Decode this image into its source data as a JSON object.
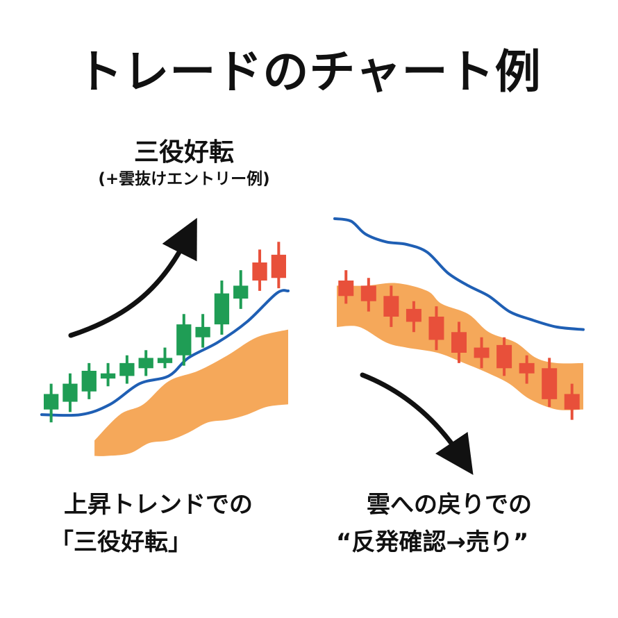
{
  "title": "トレードのチャート例",
  "left_panel": {
    "heading": "三役好転",
    "note": "(+雲抜けエントリー例)",
    "caption_line1": "上昇トレンドでの",
    "caption_line2": "「三役好転」"
  },
  "right_panel": {
    "caption_line1": "雲への戻りでの",
    "caption_line2": "“反発確認→売り”"
  },
  "colors": {
    "bull": "#1f9d55",
    "bear": "#e8503a",
    "cloud": "#f5a85a",
    "line": "#1f5fb4",
    "arrow": "#111111"
  },
  "icons": {
    "left_arrow": "arrow-up-right-icon",
    "right_arrow": "arrow-down-right-icon"
  },
  "chart_data": [
    {
      "type": "candlestick",
      "trend": "up",
      "candles": [
        {
          "o": 52,
          "c": 58,
          "h": 62,
          "l": 47,
          "dir": "bull"
        },
        {
          "o": 55,
          "c": 62,
          "h": 66,
          "l": 51,
          "dir": "bull"
        },
        {
          "o": 59,
          "c": 67,
          "h": 70,
          "l": 56,
          "dir": "bull"
        },
        {
          "o": 64,
          "c": 66,
          "h": 70,
          "l": 61,
          "dir": "bull"
        },
        {
          "o": 65,
          "c": 70,
          "h": 73,
          "l": 62,
          "dir": "bull"
        },
        {
          "o": 68,
          "c": 72,
          "h": 75,
          "l": 65,
          "dir": "bull"
        },
        {
          "o": 70,
          "c": 72,
          "h": 76,
          "l": 68,
          "dir": "bull"
        },
        {
          "o": 73,
          "c": 85,
          "h": 89,
          "l": 69,
          "dir": "bull"
        },
        {
          "o": 80,
          "c": 84,
          "h": 89,
          "l": 76,
          "dir": "bull"
        },
        {
          "o": 85,
          "c": 97,
          "h": 102,
          "l": 81,
          "dir": "bull"
        },
        {
          "o": 95,
          "c": 100,
          "h": 106,
          "l": 91,
          "dir": "bull"
        },
        {
          "o": 109,
          "c": 102,
          "h": 114,
          "l": 98,
          "dir": "bear"
        },
        {
          "o": 112,
          "c": 103,
          "h": 117,
          "l": 99,
          "dir": "bear"
        }
      ],
      "baseline": [
        {
          "x": 0,
          "y": 50
        },
        {
          "x": 2,
          "y": 50
        },
        {
          "x": 3.5,
          "y": 54
        },
        {
          "x": 5,
          "y": 62
        },
        {
          "x": 6.5,
          "y": 65
        },
        {
          "x": 7.5,
          "y": 72
        },
        {
          "x": 9,
          "y": 78
        },
        {
          "x": 10.5,
          "y": 86
        },
        {
          "x": 12,
          "y": 97
        },
        {
          "x": 12.6,
          "y": 98
        }
      ],
      "cloud_upper": [
        {
          "x": 2.7,
          "y": 40
        },
        {
          "x": 4,
          "y": 50
        },
        {
          "x": 5.2,
          "y": 54
        },
        {
          "x": 6.5,
          "y": 63
        },
        {
          "x": 8,
          "y": 67
        },
        {
          "x": 9.5,
          "y": 73
        },
        {
          "x": 11,
          "y": 80
        },
        {
          "x": 12.6,
          "y": 83
        }
      ],
      "cloud_lower": [
        {
          "x": 12.6,
          "y": 54
        },
        {
          "x": 11.5,
          "y": 53
        },
        {
          "x": 10.5,
          "y": 50
        },
        {
          "x": 9.5,
          "y": 48
        },
        {
          "x": 8.5,
          "y": 47
        },
        {
          "x": 7.5,
          "y": 43
        },
        {
          "x": 6.5,
          "y": 40
        },
        {
          "x": 5.5,
          "y": 39
        },
        {
          "x": 4.5,
          "y": 35
        },
        {
          "x": 3.3,
          "y": 34
        },
        {
          "x": 2.7,
          "y": 34
        }
      ],
      "ylim": [
        25,
        130
      ],
      "xlim": [
        0,
        12.6
      ]
    },
    {
      "type": "candlestick",
      "trend": "down",
      "candles": [
        {
          "o": 102,
          "c": 96,
          "h": 106,
          "l": 93,
          "dir": "bear"
        },
        {
          "o": 100,
          "c": 94,
          "h": 103,
          "l": 90,
          "dir": "bear"
        },
        {
          "o": 96,
          "c": 88,
          "h": 100,
          "l": 84,
          "dir": "bear"
        },
        {
          "o": 91,
          "c": 86,
          "h": 94,
          "l": 82,
          "dir": "bear"
        },
        {
          "o": 88,
          "c": 79,
          "h": 92,
          "l": 75,
          "dir": "bear"
        },
        {
          "o": 82,
          "c": 74,
          "h": 86,
          "l": 70,
          "dir": "bear"
        },
        {
          "o": 76,
          "c": 72,
          "h": 80,
          "l": 68,
          "dir": "bear"
        },
        {
          "o": 77,
          "c": 68,
          "h": 80,
          "l": 65,
          "dir": "bear"
        },
        {
          "o": 70,
          "c": 66,
          "h": 73,
          "l": 62,
          "dir": "bear"
        },
        {
          "o": 68,
          "c": 56,
          "h": 72,
          "l": 53,
          "dir": "bear"
        },
        {
          "o": 58,
          "c": 52,
          "h": 62,
          "l": 48,
          "dir": "bear"
        }
      ],
      "baseline": [
        {
          "x": 0,
          "y": 126
        },
        {
          "x": 0.8,
          "y": 125
        },
        {
          "x": 1.5,
          "y": 120
        },
        {
          "x": 2.5,
          "y": 117
        },
        {
          "x": 3.5,
          "y": 116
        },
        {
          "x": 4.5,
          "y": 113
        },
        {
          "x": 5.5,
          "y": 105
        },
        {
          "x": 6.5,
          "y": 100
        },
        {
          "x": 7.5,
          "y": 96
        },
        {
          "x": 8.5,
          "y": 90
        },
        {
          "x": 9.5,
          "y": 87
        },
        {
          "x": 10.8,
          "y": 84
        },
        {
          "x": 12.1,
          "y": 83
        }
      ],
      "cloud_upper": [
        {
          "x": 0.1,
          "y": 100
        },
        {
          "x": 1.5,
          "y": 100
        },
        {
          "x": 3,
          "y": 101
        },
        {
          "x": 4.5,
          "y": 98
        },
        {
          "x": 5.2,
          "y": 93
        },
        {
          "x": 6.5,
          "y": 89
        },
        {
          "x": 7.5,
          "y": 82
        },
        {
          "x": 8.8,
          "y": 78
        },
        {
          "x": 9.8,
          "y": 72
        },
        {
          "x": 10.8,
          "y": 70
        },
        {
          "x": 12.1,
          "y": 70
        }
      ],
      "cloud_lower": [
        {
          "x": 12.1,
          "y": 52
        },
        {
          "x": 10.8,
          "y": 52
        },
        {
          "x": 9.5,
          "y": 56
        },
        {
          "x": 8.5,
          "y": 62
        },
        {
          "x": 7.5,
          "y": 66
        },
        {
          "x": 6.3,
          "y": 70
        },
        {
          "x": 5,
          "y": 74
        },
        {
          "x": 3.5,
          "y": 76
        },
        {
          "x": 2.5,
          "y": 78
        },
        {
          "x": 1.2,
          "y": 84
        },
        {
          "x": 0.1,
          "y": 84
        }
      ],
      "ylim": [
        25,
        130
      ],
      "xlim": [
        0,
        12.1
      ]
    }
  ]
}
